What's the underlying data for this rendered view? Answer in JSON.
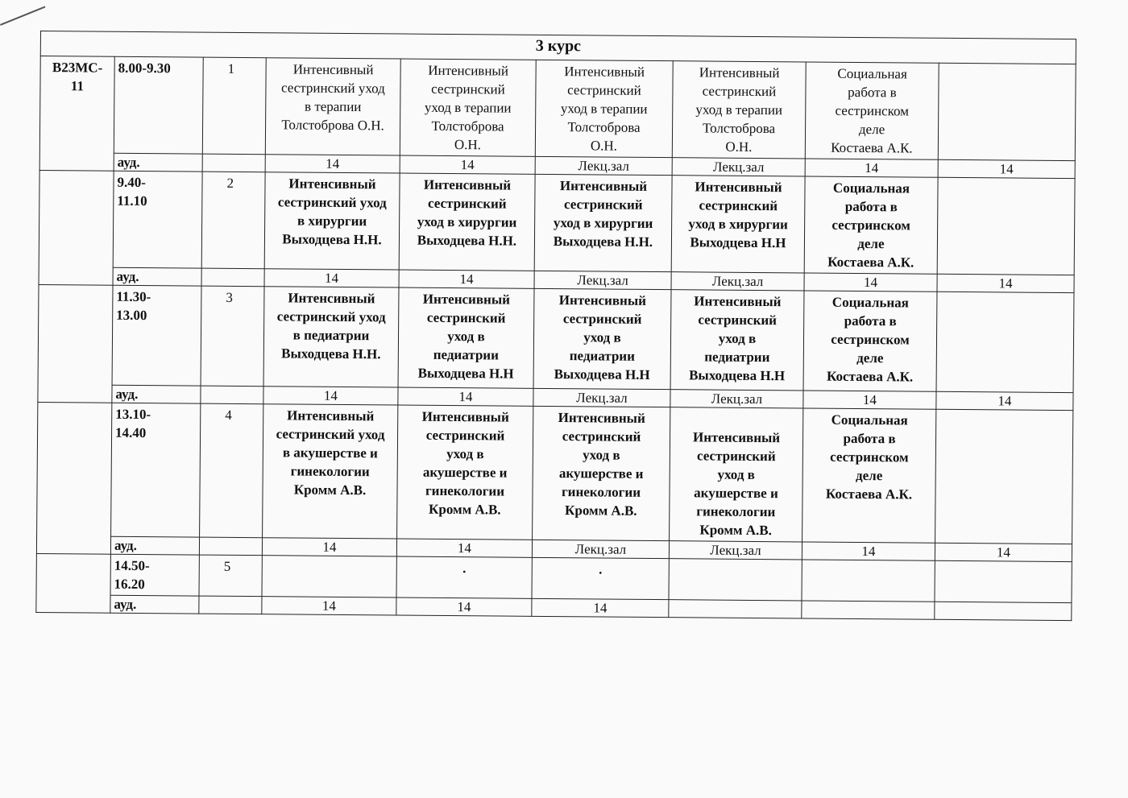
{
  "title": "3 курс",
  "group": "В23МС-\n11",
  "room_label": "ауд.",
  "lessons": [
    {
      "time": "8.00-9.30",
      "number": "1",
      "cells": [
        "Интенсивный\nсестринский уход\nв терапии\nТолстоброва О.Н.",
        "Интенсивный\nсестринский\nуход в терапии\nТолстоброва\nО.Н.",
        "Интенсивный\nсестринский\nуход в терапии\nТолстоброва\nО.Н.",
        "Интенсивный\nсестринский\nуход в терапии\nТолстоброва\nО.Н.",
        "Социальная\nработа в\nсестринском\nделе\nКостаева А.К.",
        ""
      ],
      "rooms": [
        "14",
        "14",
        "Лекц.зал",
        "Лекц.зал",
        "14",
        "14"
      ]
    },
    {
      "time": "9.40-\n11.10",
      "number": "2",
      "cells": [
        "Интенсивный\nсестринский уход\nв хирургии\nВыходцева Н.Н.",
        "Интенсивный\nсестринский\nуход в хирургии\nВыходцева Н.Н.",
        "Интенсивный\nсестринский\nуход в хирургии\nВыходцева Н.Н.",
        "Интенсивный\nсестринский\nуход в хирургии\nВыходцева Н.Н",
        "Социальная\nработа в\nсестринском\nделе\nКостаева А.К.",
        ""
      ],
      "rooms": [
        "14",
        "14",
        "Лекц.зал",
        "Лекц.зал",
        "14",
        "14"
      ]
    },
    {
      "time": "11.30-\n13.00",
      "number": "3",
      "cells": [
        "Интенсивный\nсестринский уход\nв педиатрии\nВыходцева Н.Н.",
        "Интенсивный\nсестринский\nуход в\nпедиатрии\nВыходцева Н.Н",
        "Интенсивный\nсестринский\nуход в\nпедиатрии\nВыходцева Н.Н",
        "Интенсивный\nсестринский\nуход в\nпедиатрии\nВыходцева Н.Н",
        "Социальная\nработа в\nсестринском\nделе\nКостаева А.К.",
        ""
      ],
      "rooms": [
        "14",
        "14",
        "Лекц.зал",
        "Лекц.зал",
        "14",
        "14"
      ]
    },
    {
      "time": "13.10-\n14.40",
      "number": "4",
      "cells": [
        "Интенсивный\nсестринский уход\nв акушерстве и\nгинекологии\nКромм А.В.",
        "Интенсивный\nсестринский\nуход в\nакушерстве и\nгинекологии\nКромм А.В.",
        "Интенсивный\nсестринский\nуход в\nакушерстве и\nгинекологии\nКромм А.В.",
        "\nИнтенсивный\nсестринский\nуход в\nакушерстве и\nгинекологии\nКромм А.В.",
        "Социальная\nработа в\nсестринском\nделе\nКостаева А.К.",
        ""
      ],
      "rooms": [
        "14",
        "14",
        "Лекц.зал",
        "Лекц.зал",
        "14",
        "14"
      ]
    },
    {
      "time": "14.50-\n16.20",
      "number": "5",
      "cells": [
        "",
        ".",
        ".",
        "",
        "",
        ""
      ],
      "rooms": [
        "14",
        "14",
        "14",
        "",
        "",
        ""
      ]
    }
  ]
}
